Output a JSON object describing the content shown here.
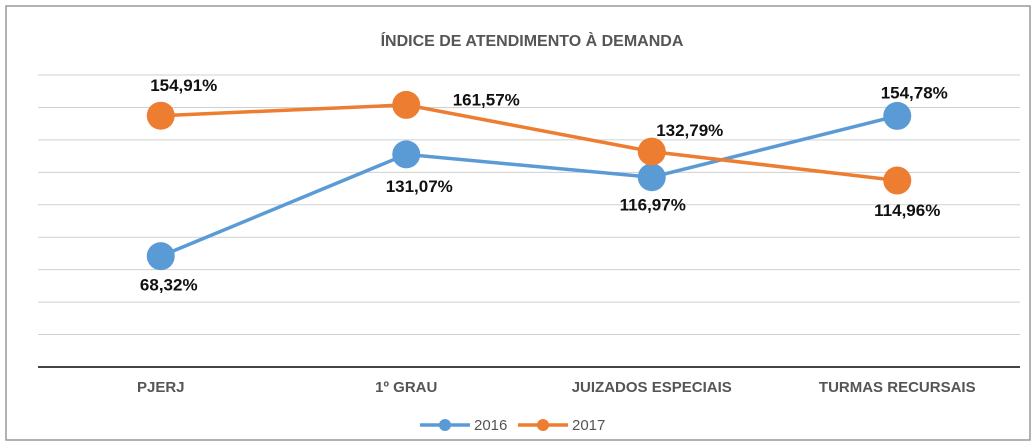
{
  "chart_data": {
    "type": "line",
    "title": "ÍNDICE DE ATENDIMENTO À DEMANDA",
    "categories": [
      "PJERJ",
      "1º GRAU",
      "JUIZADOS ESPECIAIS",
      "TURMAS RECURSAIS"
    ],
    "series": [
      {
        "name": "2016",
        "color": "#5b9bd5",
        "values": [
          68.32,
          131.07,
          116.97,
          154.78
        ],
        "value_labels": [
          "68,32%",
          "131,07%",
          "116,97%",
          "154,78%"
        ]
      },
      {
        "name": "2017",
        "color": "#ed7d31",
        "values": [
          154.91,
          161.57,
          132.79,
          114.96
        ],
        "value_labels": [
          "154,91%",
          "161,57%",
          "132,79%",
          "114,96%"
        ]
      }
    ],
    "ylim": [
      0,
      180
    ],
    "yticks": [
      0,
      20,
      40,
      60,
      80,
      100,
      120,
      140,
      160,
      180
    ],
    "grid": true,
    "legend": "bottom"
  }
}
